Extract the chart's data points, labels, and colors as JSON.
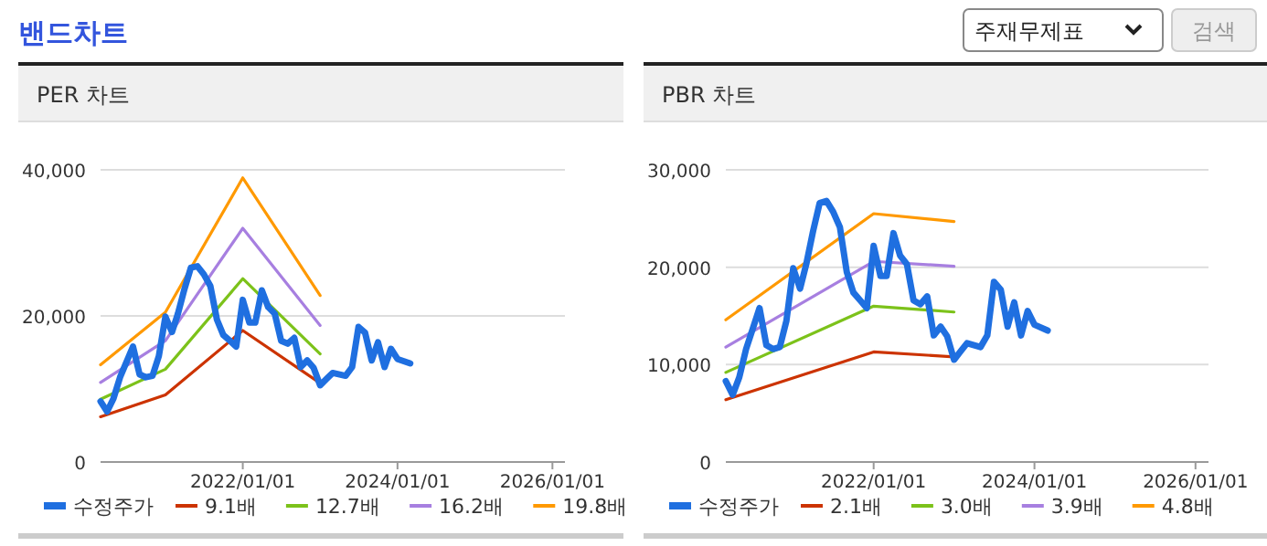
{
  "chart_data": [
    {
      "type": "other",
      "title": "밴드차트",
      "annotations": [
        "주재무제표",
        "검색"
      ]
    },
    {
      "type": "line",
      "title": "PER 차트",
      "xlim": [
        "2020-03-01",
        "2026-03-01"
      ],
      "ylim": [
        0,
        40000
      ],
      "xticks": [
        {
          "value": "2022-01-01",
          "label": "2022/01/01"
        },
        {
          "value": "2024-01-01",
          "label": "2024/01/01"
        },
        {
          "value": "2026-01-01",
          "label": "2026/01/01"
        }
      ],
      "yticks": [
        0,
        {
          "value": 20000,
          "label": "20,000"
        },
        {
          "value": 40000,
          "label": "40,000"
        }
      ],
      "grid": "y",
      "legend": "bottom",
      "series": [
        {
          "name": "수정주가",
          "color": "#1f6fe0",
          "x": [
            "2020-03",
            "2020-04",
            "2020-05",
            "2020-06",
            "2020-08",
            "2020-09",
            "2020-10",
            "2020-11",
            "2020-12",
            "2021-01",
            "2021-02",
            "2021-03",
            "2021-04",
            "2021-05",
            "2021-06",
            "2021-07",
            "2021-08",
            "2021-09",
            "2021-10",
            "2021-11",
            "2021-12",
            "2022-01",
            "2022-02",
            "2022-03",
            "2022-04",
            "2022-05",
            "2022-06",
            "2022-07",
            "2022-08",
            "2022-09",
            "2022-10",
            "2022-11",
            "2022-12",
            "2023-01",
            "2023-02",
            "2023-03",
            "2023-05",
            "2023-06",
            "2023-07",
            "2023-08",
            "2023-09",
            "2023-10",
            "2023-11",
            "2023-12",
            "2024-01",
            "2024-03"
          ],
          "values": [
            8300,
            6900,
            8700,
            11600,
            15800,
            12000,
            11600,
            11800,
            14500,
            19900,
            17800,
            20300,
            23700,
            26600,
            26800,
            25700,
            24100,
            19500,
            17400,
            16600,
            15800,
            22200,
            19100,
            19100,
            23500,
            21200,
            20300,
            16600,
            16200,
            17000,
            13000,
            13900,
            12900,
            10500,
            11400,
            12200,
            11800,
            13000,
            18500,
            17700,
            13900,
            16400,
            13000,
            15500,
            14100,
            13500
          ]
        },
        {
          "name": "9.1배",
          "color": "#cc3300",
          "x": [
            "2020-03",
            "2021-01",
            "2022-01",
            "2023-01"
          ],
          "values": [
            6200,
            9200,
            18000,
            10800
          ]
        },
        {
          "name": "12.7배",
          "color": "#7cc21a",
          "x": [
            "2020-03",
            "2021-01",
            "2022-01",
            "2023-01"
          ],
          "values": [
            8600,
            12700,
            25100,
            14800
          ]
        },
        {
          "name": "16.2배",
          "color": "#a77fe0",
          "x": [
            "2020-03",
            "2021-01",
            "2022-01",
            "2023-01"
          ],
          "values": [
            10900,
            16600,
            32000,
            18700
          ]
        },
        {
          "name": "19.8배",
          "color": "#ff9900",
          "x": [
            "2020-03",
            "2021-01",
            "2022-01",
            "2023-01"
          ],
          "values": [
            13300,
            20500,
            38900,
            22800
          ]
        }
      ]
    },
    {
      "type": "line",
      "title": "PBR 차트",
      "xlim": [
        "2020-03-01",
        "2026-03-01"
      ],
      "ylim": [
        0,
        30000
      ],
      "xticks": [
        {
          "value": "2022-01-01",
          "label": "2022/01/01"
        },
        {
          "value": "2024-01-01",
          "label": "2024/01/01"
        },
        {
          "value": "2026-01-01",
          "label": "2026/01/01"
        }
      ],
      "yticks": [
        0,
        {
          "value": 10000,
          "label": "10,000"
        },
        {
          "value": 20000,
          "label": "20,000"
        },
        {
          "value": 30000,
          "label": "30,000"
        }
      ],
      "grid": "y",
      "legend": "bottom",
      "series": [
        {
          "name": "수정주가",
          "color": "#1f6fe0",
          "x": [
            "2020-03",
            "2020-04",
            "2020-05",
            "2020-06",
            "2020-08",
            "2020-09",
            "2020-10",
            "2020-11",
            "2020-12",
            "2021-01",
            "2021-02",
            "2021-03",
            "2021-04",
            "2021-05",
            "2021-06",
            "2021-07",
            "2021-08",
            "2021-09",
            "2021-10",
            "2021-11",
            "2021-12",
            "2022-01",
            "2022-02",
            "2022-03",
            "2022-04",
            "2022-05",
            "2022-06",
            "2022-07",
            "2022-08",
            "2022-09",
            "2022-10",
            "2022-11",
            "2022-12",
            "2023-01",
            "2023-02",
            "2023-03",
            "2023-05",
            "2023-06",
            "2023-07",
            "2023-08",
            "2023-09",
            "2023-10",
            "2023-11",
            "2023-12",
            "2024-01",
            "2024-03"
          ],
          "values": [
            8300,
            6900,
            8700,
            11600,
            15800,
            12000,
            11600,
            11800,
            14500,
            19900,
            17800,
            20300,
            23700,
            26600,
            26800,
            25700,
            24100,
            19500,
            17400,
            16600,
            15800,
            22200,
            19100,
            19100,
            23500,
            21200,
            20300,
            16600,
            16200,
            17000,
            13000,
            13900,
            12900,
            10500,
            11400,
            12200,
            11800,
            13000,
            18500,
            17700,
            13900,
            16400,
            13000,
            15500,
            14100,
            13500
          ]
        },
        {
          "name": "2.1배",
          "color": "#cc3300",
          "x": [
            "2020-03",
            "2022-01",
            "2023-01"
          ],
          "values": [
            6400,
            11300,
            10800
          ]
        },
        {
          "name": "3.0배",
          "color": "#7cc21a",
          "x": [
            "2020-03",
            "2022-01",
            "2023-01"
          ],
          "values": [
            9200,
            16000,
            15400
          ]
        },
        {
          "name": "3.9배",
          "color": "#a77fe0",
          "x": [
            "2020-03",
            "2022-01",
            "2023-01"
          ],
          "values": [
            11800,
            20600,
            20100
          ]
        },
        {
          "name": "4.8배",
          "color": "#ff9900",
          "x": [
            "2020-03",
            "2022-01",
            "2023-01"
          ],
          "values": [
            14600,
            25500,
            24700
          ]
        }
      ]
    }
  ]
}
